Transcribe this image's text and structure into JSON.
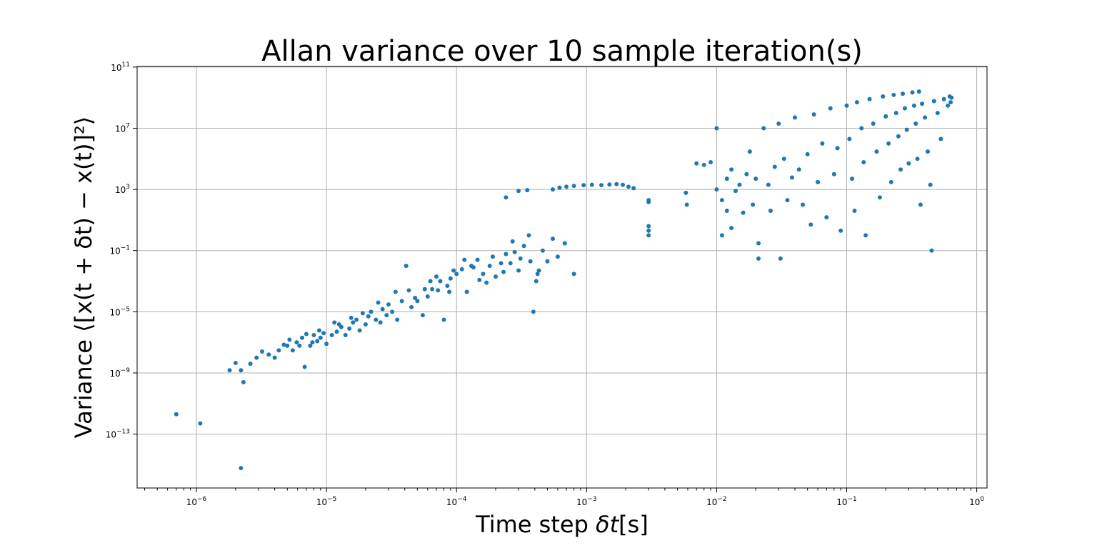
{
  "chart_data": {
    "type": "scatter",
    "title": "Allan variance over 10 sample iteration(s)",
    "xlabel_prefix": "Time step ",
    "xlabel_math": "δt",
    "xlabel_unit": "[s]",
    "ylabel_prefix": "Variance ",
    "ylabel_math": "⟨[x(t + δt) − x(t)]²⟩",
    "xscale": "log",
    "yscale": "log",
    "xlim": [
      3.5e-07,
      1.2
    ],
    "ylim": [
      3e-17,
      110000000000.0
    ],
    "grid": true,
    "marker_color": "#1f77b4",
    "x_ticks": [
      {
        "base": "10",
        "exp": "−6",
        "value": 1e-06
      },
      {
        "base": "10",
        "exp": "−5",
        "value": 1e-05
      },
      {
        "base": "10",
        "exp": "−4",
        "value": 0.0001
      },
      {
        "base": "10",
        "exp": "−3",
        "value": 0.001
      },
      {
        "base": "10",
        "exp": "−2",
        "value": 0.01
      },
      {
        "base": "10",
        "exp": "−1",
        "value": 0.1
      },
      {
        "base": "10",
        "exp": "0",
        "value": 1
      }
    ],
    "y_ticks": [
      {
        "base": "10",
        "exp": "11",
        "value": 100000000000.0
      },
      {
        "base": "10",
        "exp": "7",
        "value": 10000000.0
      },
      {
        "base": "10",
        "exp": "3",
        "value": 1000.0
      },
      {
        "base": "10",
        "exp": "−1",
        "value": 0.1
      },
      {
        "base": "10",
        "exp": "−5",
        "value": 1e-05
      },
      {
        "base": "10",
        "exp": "−9",
        "value": 1e-09
      },
      {
        "base": "10",
        "exp": "−13",
        "value": 1e-13
      }
    ],
    "points": [
      [
        7e-07,
        2e-12
      ],
      [
        1.07e-06,
        5e-13
      ],
      [
        2.2e-06,
        6e-16
      ],
      [
        1.8e-06,
        1.5e-09
      ],
      [
        2e-06,
        4.5e-09
      ],
      [
        2.2e-06,
        1.5e-09
      ],
      [
        2.3e-06,
        2.5e-10
      ],
      [
        2.6e-06,
        4e-09
      ],
      [
        2.9e-06,
        1e-08
      ],
      [
        3.2e-06,
        2.5e-08
      ],
      [
        3.6e-06,
        1.6e-08
      ],
      [
        4e-06,
        1e-08
      ],
      [
        4.3e-06,
        3e-08
      ],
      [
        5e-06,
        6e-08
      ],
      [
        5.5e-06,
        3e-08
      ],
      [
        5.9e-06,
        1e-07
      ],
      [
        6.2e-06,
        6e-08
      ],
      [
        6.8e-06,
        2.5e-09
      ],
      [
        7.5e-06,
        6e-08
      ],
      [
        8e-06,
        3e-07
      ],
      [
        8.5e-06,
        1.2e-07
      ],
      [
        9e-06,
        2e-07
      ],
      [
        1e-05,
        8e-08
      ],
      [
        1.1e-05,
        3e-07
      ],
      [
        1.2e-05,
        5e-07
      ],
      [
        1.3e-05,
        1e-06
      ],
      [
        1.4e-05,
        3e-07
      ],
      [
        1.5e-05,
        8e-07
      ],
      [
        1.6e-05,
        2e-06
      ],
      [
        1.8e-05,
        6e-07
      ],
      [
        2e-05,
        1.5e-06
      ],
      [
        2.2e-05,
        1e-05
      ],
      [
        2.4e-05,
        3e-06
      ],
      [
        2.6e-05,
        2e-06
      ],
      [
        2.9e-05,
        6e-06
      ],
      [
        3.2e-05,
        1e-05
      ],
      [
        3.5e-05,
        3e-06
      ],
      [
        3.8e-05,
        5e-05
      ],
      [
        4.1e-05,
        0.01
      ],
      [
        4.5e-05,
        2e-05
      ],
      [
        5e-05,
        5e-05
      ],
      [
        5.5e-05,
        6e-06
      ],
      [
        6e-05,
        0.0001
      ],
      [
        6.5e-05,
        0.0003
      ],
      [
        7e-05,
        0.002
      ],
      [
        7.5e-05,
        0.001
      ],
      [
        8e-05,
        3e-06
      ],
      [
        8.5e-05,
        0.0005
      ],
      [
        9e-05,
        0.0015
      ],
      [
        0.0001,
        0.003
      ],
      [
        0.00011,
        0.006
      ],
      [
        0.00012,
        0.0002
      ],
      [
        0.00013,
        0.01
      ],
      [
        0.000145,
        0.025
      ],
      [
        0.00016,
        0.003
      ],
      [
        0.00018,
        0.01
      ],
      [
        0.0002,
        0.002
      ],
      [
        0.00022,
        0.015
      ],
      [
        0.00024,
        0.06
      ],
      [
        0.00026,
        0.015
      ],
      [
        0.00028,
        0.08
      ],
      [
        0.0003,
        0.005
      ],
      [
        0.00033,
        0.2
      ],
      [
        0.00036,
        1.0
      ],
      [
        0.00039,
        1e-05
      ],
      [
        0.00042,
        0.003
      ],
      [
        0.00046,
        0.1
      ],
      [
        0.0005,
        0.02
      ],
      [
        0.00055,
        0.6
      ],
      [
        0.0006,
        0.04
      ],
      [
        0.00068,
        0.3
      ],
      [
        0.0008,
        0.003
      ],
      [
        0.00041,
        0.001
      ],
      [
        0.00043,
        0.005
      ],
      [
        0.00037,
        0.02
      ],
      [
        0.00031,
        0.03
      ],
      [
        0.00027,
        0.4
      ],
      [
        0.00023,
        0.004
      ],
      [
        0.00019,
        0.04
      ],
      [
        0.00017,
        0.0008
      ],
      [
        0.00015,
        0.0012
      ],
      [
        0.000135,
        0.008
      ],
      [
        0.000115,
        0.025
      ],
      [
        9.5e-05,
        0.005
      ],
      [
        8.8e-05,
        0.0002
      ],
      [
        7.2e-05,
        0.00025
      ],
      [
        6.3e-05,
        0.001
      ],
      [
        5.7e-05,
        0.0003
      ],
      [
        4.8e-05,
        8e-05
      ],
      [
        4.3e-05,
        0.00025
      ],
      [
        3.4e-05,
        0.0002
      ],
      [
        3e-05,
        3e-05
      ],
      [
        2.7e-05,
        1.5e-05
      ],
      [
        2.5e-05,
        4e-05
      ],
      [
        2.1e-05,
        5e-06
      ],
      [
        1.9e-05,
        8e-06
      ],
      [
        1.7e-05,
        3e-06
      ],
      [
        1.55e-05,
        4e-06
      ],
      [
        1.25e-05,
        1.5e-06
      ],
      [
        1.15e-05,
        2e-06
      ],
      [
        9.5e-06,
        4e-07
      ],
      [
        8.8e-06,
        6e-07
      ],
      [
        7.8e-06,
        1e-07
      ],
      [
        7e-06,
        3.5e-07
      ],
      [
        6.5e-06,
        2e-07
      ],
      [
        5.2e-06,
        1.5e-07
      ],
      [
        4.7e-06,
        7e-08
      ],
      [
        0.00024,
        300.0
      ],
      [
        0.0003,
        800.0
      ],
      [
        0.00035,
        900.0
      ],
      [
        0.00055,
        1000.0
      ],
      [
        0.00062,
        1300.0
      ],
      [
        0.0007,
        1500.0
      ],
      [
        0.0008,
        1700.0
      ],
      [
        0.00095,
        1900.0
      ],
      [
        0.0011,
        2000.0
      ],
      [
        0.0013,
        1900.0
      ],
      [
        0.0015,
        2100.0
      ],
      [
        0.0017,
        2200.0
      ],
      [
        0.0019,
        2000.0
      ],
      [
        0.0021,
        1500.0
      ],
      [
        0.0023,
        1200.0
      ],
      [
        0.003,
        150.0
      ],
      [
        0.003,
        200.0
      ],
      [
        0.003,
        1.0
      ],
      [
        0.003,
        2.0
      ],
      [
        0.003,
        4.0
      ],
      [
        0.0058,
        600.0
      ],
      [
        0.0059,
        100.0
      ],
      [
        0.007,
        50000.0
      ],
      [
        0.008,
        40000.0
      ],
      [
        0.009,
        60000.0
      ],
      [
        0.01,
        10000000.0
      ],
      [
        0.01,
        1000.0
      ],
      [
        0.011,
        200.0
      ],
      [
        0.011,
        1.0
      ],
      [
        0.012,
        5000.0
      ],
      [
        0.012,
        40.0
      ],
      [
        0.013,
        20000.0
      ],
      [
        0.013,
        3.0
      ],
      [
        0.014,
        800.0
      ],
      [
        0.015,
        2000.0
      ],
      [
        0.016,
        30.0
      ],
      [
        0.017,
        10000.0
      ],
      [
        0.018,
        300000.0
      ],
      [
        0.019,
        100.0
      ],
      [
        0.02,
        5000.0
      ],
      [
        0.021,
        0.3
      ],
      [
        0.021,
        0.03
      ],
      [
        0.023,
        10000000.0
      ],
      [
        0.025,
        2000.0
      ],
      [
        0.026,
        40.0
      ],
      [
        0.028,
        30000.0
      ],
      [
        0.03,
        20000000.0
      ],
      [
        0.031,
        0.03
      ],
      [
        0.033,
        100000.0
      ],
      [
        0.035,
        200.0
      ],
      [
        0.038,
        6000.0
      ],
      [
        0.04,
        50000000.0
      ],
      [
        0.043,
        20000.0
      ],
      [
        0.046,
        100.0
      ],
      [
        0.05,
        200000.0
      ],
      [
        0.053,
        5.0
      ],
      [
        0.056,
        80000000.0
      ],
      [
        0.06,
        3000.0
      ],
      [
        0.065,
        1000000.0
      ],
      [
        0.07,
        15.0
      ],
      [
        0.075,
        200000000.0
      ],
      [
        0.08,
        10000.0
      ],
      [
        0.085,
        500000.0
      ],
      [
        0.09,
        2.0
      ],
      [
        0.1,
        300000000.0
      ],
      [
        0.105,
        2000000.0
      ],
      [
        0.11,
        5000.0
      ],
      [
        0.115,
        40.0
      ],
      [
        0.12,
        500000000.0
      ],
      [
        0.13,
        10000000.0
      ],
      [
        0.135,
        60000.0
      ],
      [
        0.14,
        1.0
      ],
      [
        0.15,
        800000000.0
      ],
      [
        0.16,
        20000000.0
      ],
      [
        0.17,
        300000.0
      ],
      [
        0.18,
        300.0
      ],
      [
        0.19,
        1200000000.0
      ],
      [
        0.2,
        60000000.0
      ],
      [
        0.21,
        1000000.0
      ],
      [
        0.22,
        3000.0
      ],
      [
        0.23,
        1500000000.0
      ],
      [
        0.24,
        100000000.0
      ],
      [
        0.25,
        3000000.0
      ],
      [
        0.26,
        20000.0
      ],
      [
        0.27,
        1800000000.0
      ],
      [
        0.28,
        200000000.0
      ],
      [
        0.29,
        8000000.0
      ],
      [
        0.3,
        50000.0
      ],
      [
        0.32,
        2200000000.0
      ],
      [
        0.33,
        300000000.0
      ],
      [
        0.34,
        20000000.0
      ],
      [
        0.35,
        100000.0
      ],
      [
        0.36,
        2500000000.0
      ],
      [
        0.37,
        100.0
      ],
      [
        0.38,
        400000000.0
      ],
      [
        0.4,
        50000000.0
      ],
      [
        0.42,
        300000.0
      ],
      [
        0.44,
        2000.0
      ],
      [
        0.45,
        0.1
      ],
      [
        0.47,
        600000000.0
      ],
      [
        0.5,
        100000000.0
      ],
      [
        0.53,
        2000000.0
      ],
      [
        0.56,
        800000000.0
      ],
      [
        0.6,
        300000000.0
      ],
      [
        0.62,
        1200000000.0
      ],
      [
        0.63,
        500000000.0
      ],
      [
        0.64,
        1000000000.0
      ]
    ]
  }
}
